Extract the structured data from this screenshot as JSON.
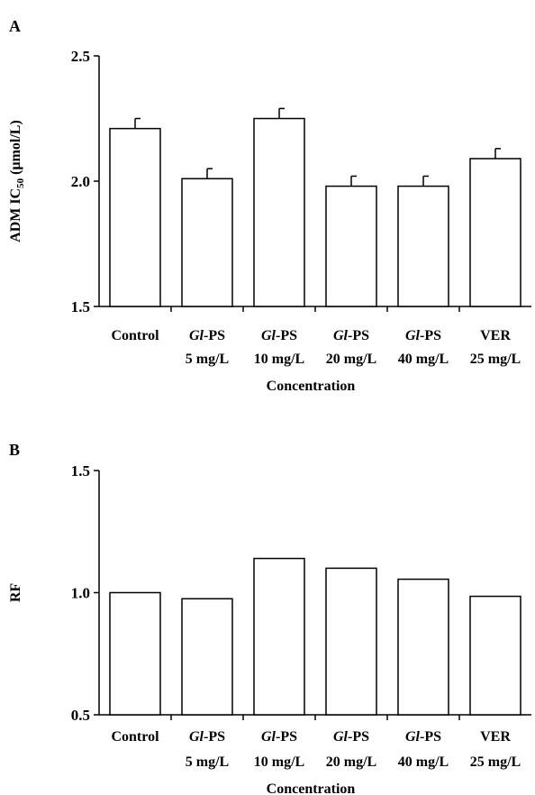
{
  "chart_data": [
    {
      "panel_label": "A",
      "type": "bar",
      "categories": [
        {
          "line1_italic": "",
          "line1": "Control",
          "line2": ""
        },
        {
          "line1_italic": "Gl",
          "line1": "-PS",
          "line2": "5 mg/L"
        },
        {
          "line1_italic": "Gl",
          "line1": "-PS",
          "line2": "10 mg/L"
        },
        {
          "line1_italic": "Gl",
          "line1": "-PS",
          "line2": "20 mg/L"
        },
        {
          "line1_italic": "Gl",
          "line1": "-PS",
          "line2": "40 mg/L"
        },
        {
          "line1_italic": "",
          "line1": "VER",
          "line2": "25 mg/L"
        }
      ],
      "values": [
        2.21,
        2.01,
        2.25,
        1.98,
        1.98,
        2.09
      ],
      "errors": [
        0.04,
        0.04,
        0.04,
        0.04,
        0.04,
        0.04
      ],
      "ylabel": {
        "prefix": "ADM IC",
        "subscript": "50",
        "suffix": " (μmol/L)"
      },
      "xlabel": "Concentration",
      "ylim": [
        1.5,
        2.5
      ],
      "yticks": [
        "1.5",
        "2.0",
        "2.5"
      ],
      "grid": false,
      "bar_fill": "#ffffff",
      "bar_stroke": "#000000"
    },
    {
      "panel_label": "B",
      "type": "bar",
      "categories": [
        {
          "line1_italic": "",
          "line1": "Control",
          "line2": ""
        },
        {
          "line1_italic": "Gl",
          "line1": "-PS",
          "line2": "5 mg/L"
        },
        {
          "line1_italic": "Gl",
          "line1": "-PS",
          "line2": "10 mg/L"
        },
        {
          "line1_italic": "Gl",
          "line1": "-PS",
          "line2": "20 mg/L"
        },
        {
          "line1_italic": "Gl",
          "line1": "-PS",
          "line2": "40 mg/L"
        },
        {
          "line1_italic": "",
          "line1": "VER",
          "line2": "25 mg/L"
        }
      ],
      "values": [
        1.0,
        0.975,
        1.14,
        1.1,
        1.055,
        0.985
      ],
      "errors": [],
      "ylabel": {
        "prefix": "RF",
        "subscript": "",
        "suffix": ""
      },
      "xlabel": "Concentration",
      "ylim": [
        0.5,
        1.5
      ],
      "yticks": [
        "0.5",
        "1.0",
        "1.5"
      ],
      "grid": false,
      "bar_fill": "#ffffff",
      "bar_stroke": "#000000"
    }
  ]
}
